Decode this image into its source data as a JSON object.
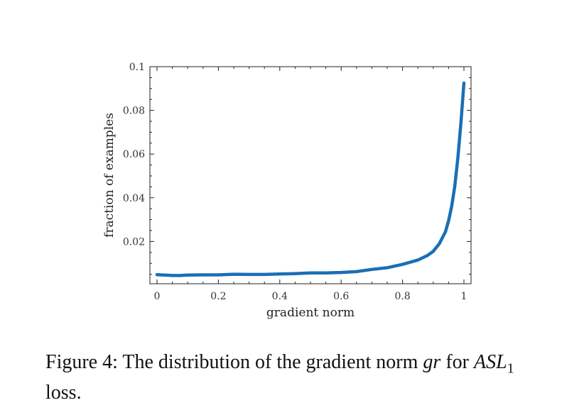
{
  "chart_data": {
    "type": "line",
    "xlabel": "gradient norm",
    "ylabel": "fraction of examples",
    "xlim": [
      0,
      1
    ],
    "ylim": [
      0,
      0.1
    ],
    "xticks": [
      "0",
      "0.2",
      "0.4",
      "0.6",
      "0.8",
      "1"
    ],
    "yticks": [
      "0.02",
      "0.04",
      "0.06",
      "0.08",
      "0.1"
    ],
    "line_color": "#1a6fb5",
    "series": [
      {
        "x": [
          0.0,
          0.025,
          0.05,
          0.075,
          0.1,
          0.15,
          0.2,
          0.25,
          0.3,
          0.35,
          0.4,
          0.45,
          0.5,
          0.55,
          0.6,
          0.65,
          0.7,
          0.75,
          0.8,
          0.85,
          0.88,
          0.9,
          0.92,
          0.94,
          0.95,
          0.96,
          0.97,
          0.98,
          0.99,
          1.0
        ],
        "y": [
          0.0048,
          0.0046,
          0.0044,
          0.0044,
          0.0046,
          0.0047,
          0.0047,
          0.005,
          0.0049,
          0.0049,
          0.0051,
          0.0053,
          0.0056,
          0.0056,
          0.0058,
          0.0062,
          0.0072,
          0.008,
          0.0095,
          0.0115,
          0.0135,
          0.0155,
          0.019,
          0.0245,
          0.0295,
          0.036,
          0.045,
          0.058,
          0.074,
          0.0925
        ]
      }
    ]
  },
  "caption": {
    "prefix": "Figure 4: The distribution of the gradient norm ",
    "var": "gr",
    "middle": " for ",
    "loss_name": "ASL",
    "loss_sub": "1",
    "suffix": "loss."
  }
}
